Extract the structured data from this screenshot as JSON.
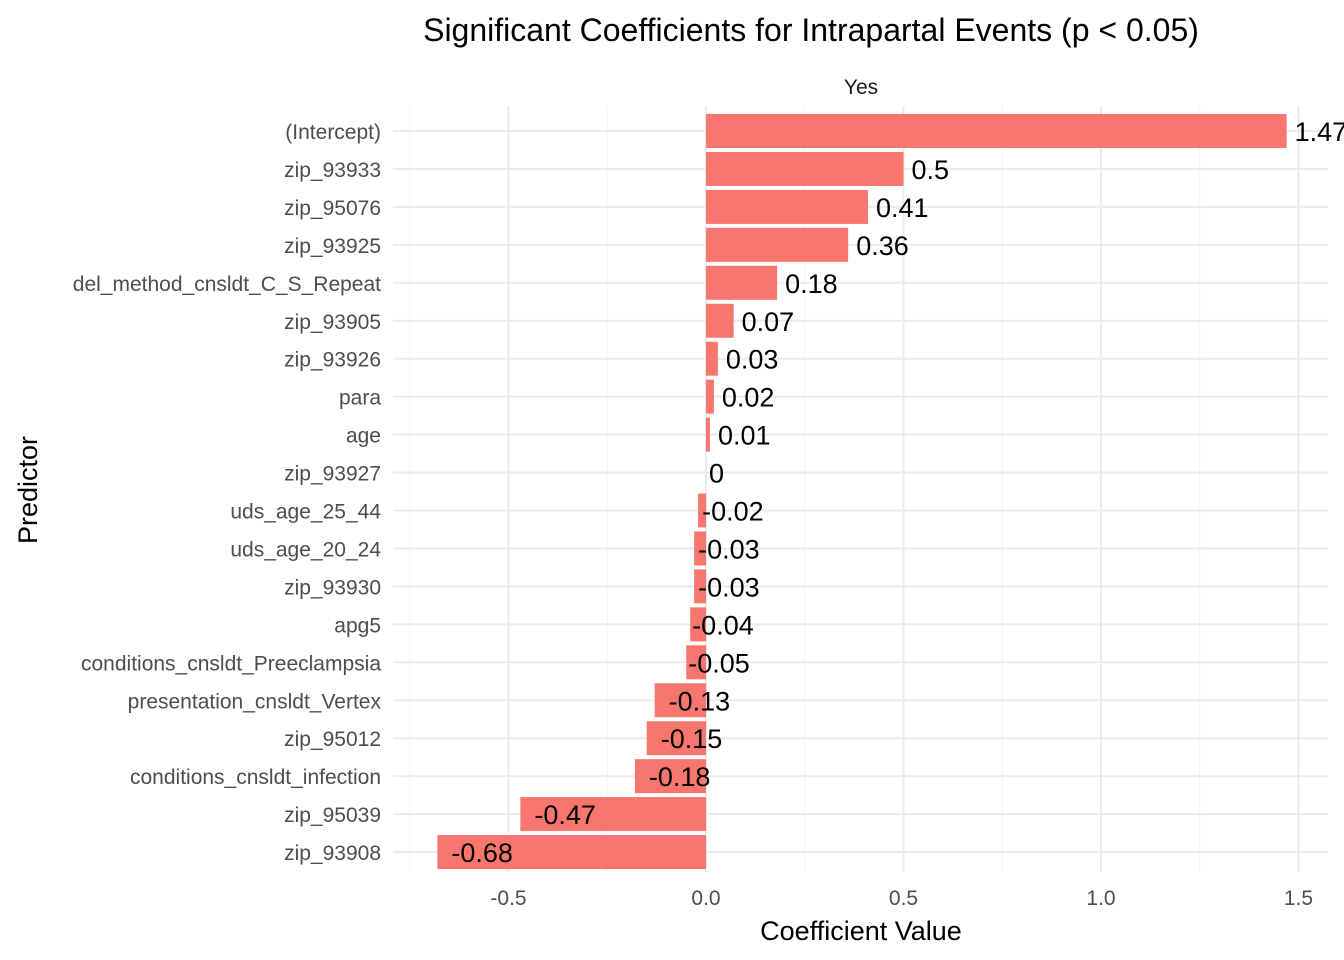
{
  "chart_data": {
    "type": "bar",
    "orientation": "horizontal",
    "title": "Significant Coefficients for Intrapartal Events (p < 0.05)",
    "facet_label": "Yes",
    "xlabel": "Coefficient Value",
    "ylabel": "Predictor",
    "xlim": [
      -0.75,
      1.55
    ],
    "x_ticks": [
      -0.5,
      0.0,
      0.5,
      1.0,
      1.5
    ],
    "x_tick_labels": [
      "-0.5",
      "0.0",
      "0.5",
      "1.0",
      "1.5"
    ],
    "grid": true,
    "legend": "none",
    "bar_color": "#F8766D",
    "categories": [
      "(Intercept)",
      "zip_93933",
      "zip_95076",
      "zip_93925",
      "del_method_cnsldt_C_S_Repeat",
      "zip_93905",
      "zip_93926",
      "para",
      "age",
      "zip_93927",
      "uds_age_25_44",
      "uds_age_20_24",
      "zip_93930",
      "apg5",
      "conditions_cnsldt_Preeclampsia",
      "presentation_cnsldt_Vertex",
      "zip_95012",
      "conditions_cnsldt_infection",
      "zip_95039",
      "zip_93908"
    ],
    "values": [
      1.47,
      0.5,
      0.41,
      0.36,
      0.18,
      0.07,
      0.03,
      0.02,
      0.01,
      0.0,
      -0.02,
      -0.03,
      -0.03,
      -0.04,
      -0.05,
      -0.13,
      -0.15,
      -0.18,
      -0.47,
      -0.68
    ],
    "value_labels": [
      "1.47",
      "0.5",
      "0.41",
      "0.36",
      "0.18",
      "0.07",
      "0.03",
      "0.02",
      "0.01",
      "0",
      "-0.02",
      "-0.03",
      "-0.03",
      "-0.04",
      "-0.05",
      "-0.13",
      "-0.15",
      "-0.18",
      "-0.47",
      "-0.68"
    ]
  }
}
